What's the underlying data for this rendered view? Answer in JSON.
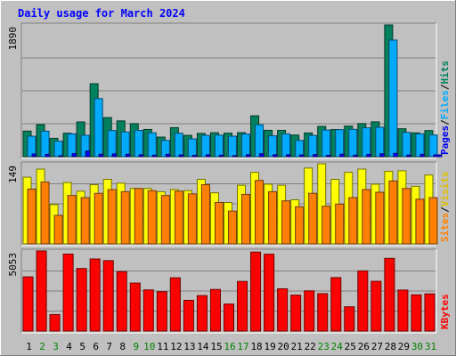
{
  "chart_data": {
    "type": "bar",
    "title": "Daily usage for March 2024",
    "categories": [
      "1",
      "2",
      "3",
      "4",
      "5",
      "6",
      "7",
      "8",
      "9",
      "10",
      "11",
      "12",
      "13",
      "14",
      "15",
      "16",
      "17",
      "18",
      "19",
      "20",
      "21",
      "22",
      "23",
      "24",
      "25",
      "26",
      "27",
      "28",
      "29",
      "30",
      "31"
    ],
    "weekend_days": [
      "2",
      "3",
      "9",
      "10",
      "16",
      "17",
      "23",
      "24",
      "30",
      "31"
    ],
    "panels": [
      {
        "id": "hits",
        "ymax_label": "1890",
        "ylim": [
          0,
          1890
        ],
        "side_labels": [
          "Pages",
          "Files",
          "Hits"
        ],
        "series": [
          {
            "name": "Hits",
            "color": "#00805c",
            "values": [
              367,
              459,
              263,
              336,
              498,
              1046,
              560,
              513,
              474,
              390,
              280,
              416,
              305,
              333,
              343,
              337,
              344,
              586,
              378,
              377,
              310,
              340,
              433,
              389,
              438,
              474,
              499,
              1890,
              400,
              341,
              374
            ]
          },
          {
            "name": "Files",
            "color": "#00aaff",
            "values": [
              293,
              366,
              222,
              327,
              307,
              833,
              375,
              354,
              376,
              342,
              233,
              336,
              255,
              305,
              309,
              293,
              325,
              457,
              299,
              326,
              233,
              304,
              382,
              387,
              392,
              414,
              422,
              1673,
              347,
              328,
              311
            ]
          },
          {
            "name": "Pages",
            "color": "#0000ff",
            "values": [
              38,
              33,
              12,
              44,
              80,
              35,
              40,
              35,
              28,
              21,
              34,
              26,
              19,
              26,
              21,
              14,
              29,
              42,
              27,
              28,
              25,
              31,
              19,
              35,
              21,
              33,
              42,
              47,
              23,
              33,
              26
            ]
          }
        ]
      },
      {
        "id": "visits",
        "ymax_label": "149",
        "ylim": [
          0,
          149
        ],
        "side_labels": [
          "Sites",
          "Visits"
        ],
        "series": [
          {
            "name": "Visits",
            "color": "#ffff00",
            "values": [
              124,
              139,
              73,
              114,
              98,
              110,
              120,
              113,
              103,
              103,
              97,
              101,
              99,
              120,
              95,
              77,
              109,
              133,
              111,
              109,
              82,
              141,
              149,
              120,
              133,
              139,
              111,
              135,
              136,
              107,
              128
            ]
          },
          {
            "name": "Sites",
            "color": "#ff8000",
            "values": [
              102,
              115,
              53,
              90,
              86,
              94,
              101,
              97,
              103,
              99,
              90,
              98,
              93,
              110,
              77,
              61,
              92,
              118,
              97,
              80,
              69,
              94,
              70,
              74,
              86,
              101,
              96,
              117,
              103,
              83,
              86
            ]
          }
        ]
      },
      {
        "id": "kbytes",
        "ymax_label": "5053",
        "ylim": [
          0,
          5053
        ],
        "side_labels": [
          "KBytes"
        ],
        "series": [
          {
            "name": "KBytes",
            "color": "#ff0000",
            "values": [
              3420,
              5053,
              1042,
              4856,
              3950,
              4547,
              4442,
              3747,
              3028,
              2596,
              2485,
              3363,
              1939,
              2239,
              2626,
              1705,
              3131,
              4985,
              4850,
              2668,
              2267,
              2538,
              2359,
              3374,
              1532,
              3797,
              3141,
              4586,
              2588,
              2287,
              2346
            ]
          }
        ]
      }
    ],
    "colors": {
      "background": "#c0c0c0",
      "title": "#0000ff",
      "weekday_label": "#000000",
      "weekend_label": "#007f00",
      "grid": "#808080"
    }
  }
}
